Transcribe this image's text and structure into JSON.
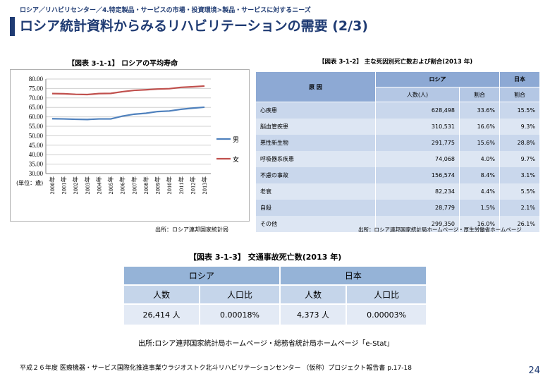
{
  "header": {
    "breadcrumb": "ロシア／リハビリセンター／4.特定製品・サービスの市場・投資環境>製品・サービスに対するニーズ",
    "title": "ロシア統計資料からみるリハビリテーションの需要 (2/3)"
  },
  "figure1": {
    "title": "【図表 3-1-1】 ロシアの平均寿命",
    "source": "出所：ロシア連邦国家統計局"
  },
  "chart_data": {
    "type": "line",
    "title": "【図表 3-1-1】 ロシアの平均寿命",
    "unit_label": "(単位：歳)",
    "x": [
      "2000年",
      "2001年",
      "2002年",
      "2003年",
      "2004年",
      "2005年",
      "2006年",
      "2007年",
      "2008年",
      "2009年",
      "2010年",
      "2011年",
      "2012年",
      "2013年"
    ],
    "ylim": [
      30,
      80
    ],
    "yticks": [
      "80.00",
      "75.00",
      "70.00",
      "65.00",
      "60.00",
      "55.00",
      "50.00",
      "45.00",
      "40.00",
      "35.00",
      "30.00"
    ],
    "grid": true,
    "legend": "right",
    "series": [
      {
        "name": "男",
        "color": "#4f81bd",
        "values": [
          59.0,
          58.9,
          58.7,
          58.6,
          58.9,
          58.9,
          60.4,
          61.4,
          61.9,
          62.8,
          63.1,
          64.0,
          64.6,
          65.1
        ]
      },
      {
        "name": "女",
        "color": "#c0504d",
        "values": [
          72.3,
          72.2,
          71.9,
          71.8,
          72.3,
          72.4,
          73.3,
          74.0,
          74.3,
          74.7,
          74.9,
          75.6,
          75.9,
          76.3
        ]
      }
    ]
  },
  "figure2": {
    "title": "【図表 3-1-2】 主な死因別死亡数および割合(2013 年)",
    "source": "出所：ロシア連邦国家統計局ホームページ・厚生労働省ホームページ",
    "headers": {
      "cause": "原 因",
      "russia": "ロシア",
      "japan": "日本",
      "count": "人数(人)",
      "rate": "割合",
      "jp_rate": "割合"
    },
    "rows": [
      {
        "cause": "心疾患",
        "count": "628,498",
        "rate": "33.6%",
        "jp": "15.5%"
      },
      {
        "cause": "脳血管疾患",
        "count": "310,531",
        "rate": "16.6%",
        "jp": "9.3%"
      },
      {
        "cause": "悪性新生物",
        "count": "291,775",
        "rate": "15.6%",
        "jp": "28.8%"
      },
      {
        "cause": "呼吸器系疾患",
        "count": "74,068",
        "rate": "4.0%",
        "jp": "9.7%"
      },
      {
        "cause": "不慮の事故",
        "count": "156,574",
        "rate": "8.4%",
        "jp": "3.1%"
      },
      {
        "cause": "老衰",
        "count": "82,234",
        "rate": "4.4%",
        "jp": "5.5%"
      },
      {
        "cause": "自殺",
        "count": "28,779",
        "rate": "1.5%",
        "jp": "2.1%"
      },
      {
        "cause": "その他",
        "count": "299,350",
        "rate": "16.0%",
        "jp": "26.1%"
      }
    ]
  },
  "figure3": {
    "title": "【図表 3-1-3】 交通事故死亡数(2013 年)",
    "source": "出所:ロシア連邦国家統計局ホームページ・総務省統計局ホームページ「e-Stat」",
    "headers": {
      "russia": "ロシア",
      "japan": "日本",
      "count": "人数",
      "ratio": "人口比"
    },
    "russia": {
      "count": "26,414 人",
      "ratio": "0.00018%"
    },
    "japan": {
      "count": "4,373 人",
      "ratio": "0.00003%"
    }
  },
  "footer": {
    "text": "平成２６年度 医療機器・サービス国際化推進事業ウラジオストク北斗リハビリテーションセンター （仮称）プロジェクト報告書 p.17-18",
    "page": "24"
  }
}
